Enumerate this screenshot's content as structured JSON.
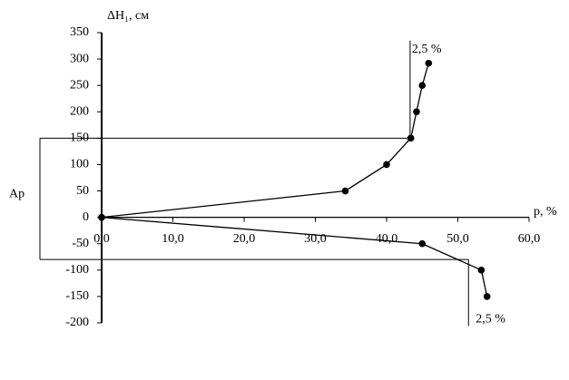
{
  "chart_data": {
    "type": "line",
    "ylabel": "ΔH₁, см",
    "xlabel": "p, %",
    "xlim": [
      0,
      60
    ],
    "xticks": [
      {
        "value": 0,
        "label": "0,0"
      },
      {
        "value": 10,
        "label": "10,0"
      },
      {
        "value": 20,
        "label": "20,0"
      },
      {
        "value": 30,
        "label": "30,0"
      },
      {
        "value": 40,
        "label": "40,0"
      },
      {
        "value": 50,
        "label": "50,0"
      },
      {
        "value": 60,
        "label": "60,0"
      }
    ],
    "ylim": [
      -200,
      350
    ],
    "yticks": [
      -200,
      -150,
      -100,
      -50,
      0,
      50,
      100,
      150,
      200,
      250,
      300,
      350
    ],
    "series": [
      {
        "color": "#000000",
        "x": [
          0,
          34.2,
          40,
          43.4,
          44.2,
          45,
          45.9
        ],
        "values": [
          0,
          50,
          100,
          150,
          200,
          250,
          292
        ]
      },
      {
        "color": "#000000",
        "x": [
          0,
          45,
          53.3,
          54.1
        ],
        "values": [
          0,
          -50,
          -100,
          -150
        ]
      }
    ],
    "layer": {
      "label": "Ap",
      "top": 150,
      "bottom": -80
    },
    "reference_lines": [
      {
        "label": "2,5 %",
        "x": 43.3,
        "from": 150,
        "to": 335
      },
      {
        "label": "2,5 %",
        "x": 51.5,
        "from": -80,
        "to": -206
      }
    ]
  }
}
